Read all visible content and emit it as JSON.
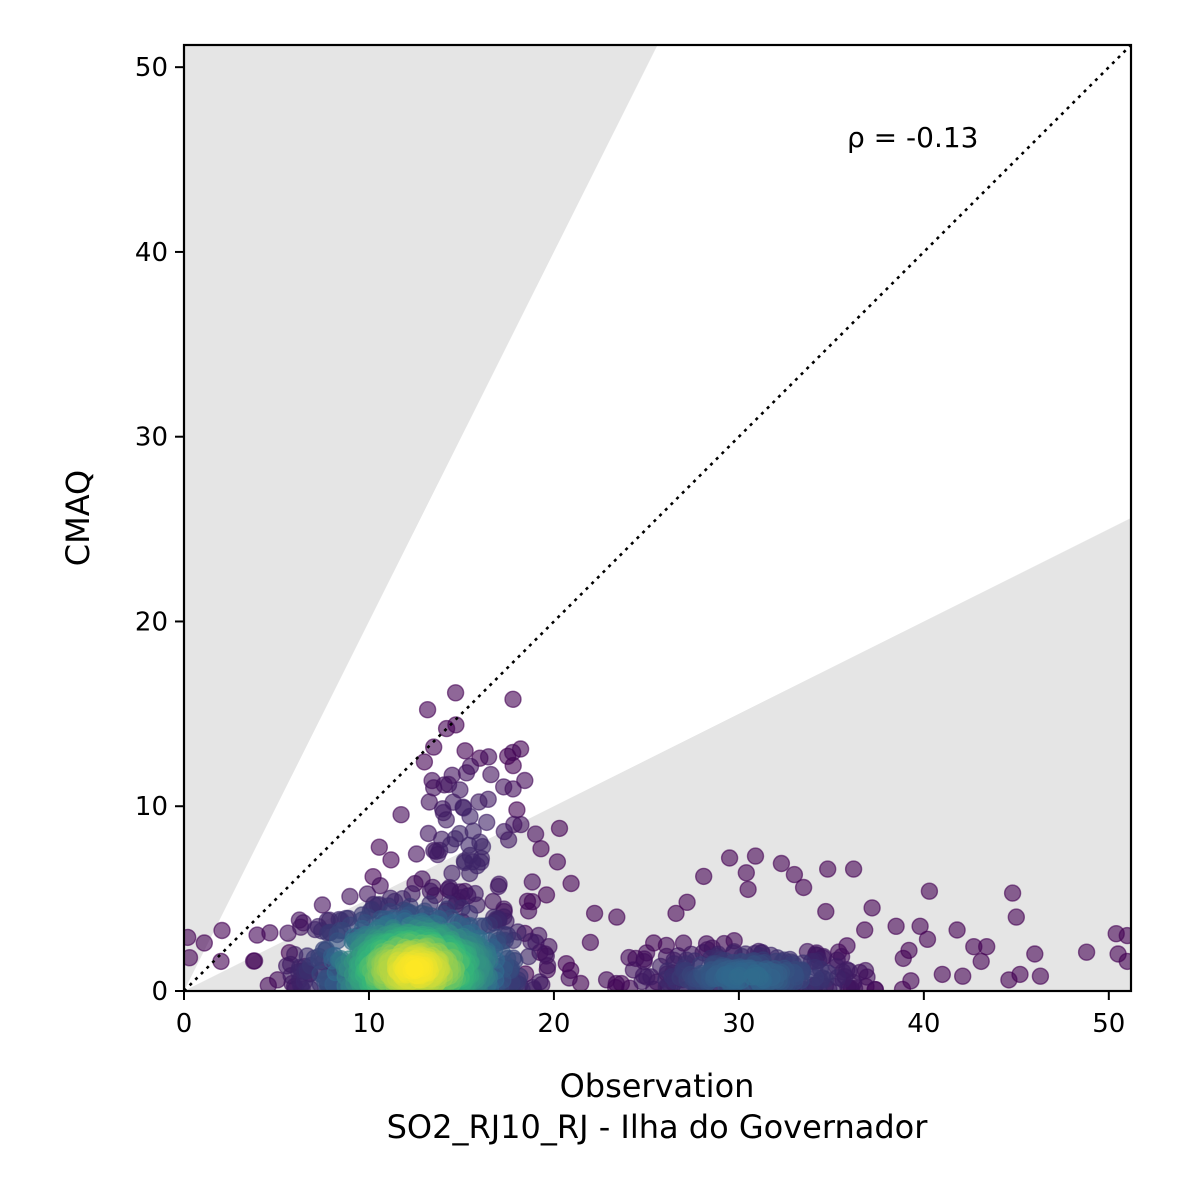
{
  "chart_data": {
    "type": "scatter",
    "xlabel": "Observation",
    "subtitle": "SO2_RJ10_RJ - Ilha do Governador",
    "ylabel": "CMAQ",
    "annotation": "ρ = -0.13",
    "xlim": [
      0,
      51.2
    ],
    "ylim": [
      0,
      51.2
    ],
    "xticks": [
      0,
      10,
      20,
      30,
      40,
      50
    ],
    "yticks": [
      0,
      10,
      20,
      30,
      40,
      50
    ],
    "reference_line": {
      "style": "dotted",
      "color": "#000000",
      "from": [
        0,
        0
      ],
      "to": [
        51.2,
        51.2
      ]
    },
    "shaded_regions": [
      {
        "color": "#e5e5e5",
        "polygon": [
          [
            0,
            0
          ],
          [
            0,
            51.2
          ],
          [
            25.6,
            51.2
          ]
        ]
      },
      {
        "color": "#e5e5e5",
        "polygon": [
          [
            0,
            0
          ],
          [
            51.2,
            0
          ],
          [
            51.2,
            25.6
          ]
        ]
      }
    ],
    "colormap": "viridis",
    "colors": {
      "low": "#440154",
      "mid": "#31688e",
      "high_mid": "#35b779",
      "high": "#fde725"
    },
    "point_alpha": 0.6,
    "clusters": [
      {
        "center": [
          12.5,
          1.2
        ],
        "spread": [
          3.0,
          1.8
        ],
        "count": 900,
        "density": "high"
      },
      {
        "center": [
          30.5,
          0.8
        ],
        "spread": [
          3.2,
          0.8
        ],
        "count": 300,
        "density": "medium"
      },
      {
        "center": [
          15.5,
          8.0
        ],
        "spread": [
          2.0,
          3.0
        ],
        "count": 80,
        "density": "low"
      }
    ],
    "outliers": [
      [
        0.2,
        2.9
      ],
      [
        0.3,
        1.8
      ],
      [
        1.1,
        2.6
      ],
      [
        2.0,
        1.6
      ],
      [
        14.7,
        14.4
      ],
      [
        14.2,
        14.2
      ],
      [
        13.5,
        13.2
      ],
      [
        13.0,
        12.4
      ],
      [
        15.2,
        13.0
      ],
      [
        16.0,
        12.6
      ],
      [
        17.5,
        12.7
      ],
      [
        18.2,
        13.1
      ],
      [
        17.8,
        12.2
      ],
      [
        18.0,
        9.8
      ],
      [
        20.3,
        8.8
      ],
      [
        19.3,
        7.7
      ],
      [
        19.6,
        5.2
      ],
      [
        22.2,
        4.2
      ],
      [
        23.4,
        4.0
      ],
      [
        26.6,
        4.2
      ],
      [
        27.2,
        4.8
      ],
      [
        28.1,
        6.2
      ],
      [
        29.5,
        7.2
      ],
      [
        30.4,
        6.4
      ],
      [
        30.9,
        7.3
      ],
      [
        30.5,
        5.5
      ],
      [
        32.3,
        6.9
      ],
      [
        33.0,
        6.3
      ],
      [
        33.5,
        5.6
      ],
      [
        34.8,
        6.6
      ],
      [
        36.2,
        6.6
      ],
      [
        34.7,
        4.3
      ],
      [
        37.2,
        4.5
      ],
      [
        40.3,
        5.4
      ],
      [
        44.8,
        5.3
      ],
      [
        45.0,
        4.0
      ],
      [
        41.8,
        3.3
      ],
      [
        43.4,
        2.4
      ],
      [
        46.0,
        2.0
      ],
      [
        46.3,
        0.8
      ],
      [
        44.6,
        0.6
      ],
      [
        45.2,
        0.9
      ],
      [
        42.1,
        0.8
      ],
      [
        41.0,
        0.9
      ],
      [
        48.8,
        2.1
      ],
      [
        50.4,
        3.1
      ],
      [
        51.0,
        3.0
      ],
      [
        50.5,
        2.0
      ],
      [
        51.0,
        1.6
      ],
      [
        38.5,
        3.5
      ],
      [
        39.8,
        3.5
      ],
      [
        40.2,
        2.8
      ],
      [
        36.8,
        3.3
      ],
      [
        39.2,
        2.2
      ],
      [
        43.1,
        1.6
      ],
      [
        42.7,
        2.4
      ]
    ]
  }
}
